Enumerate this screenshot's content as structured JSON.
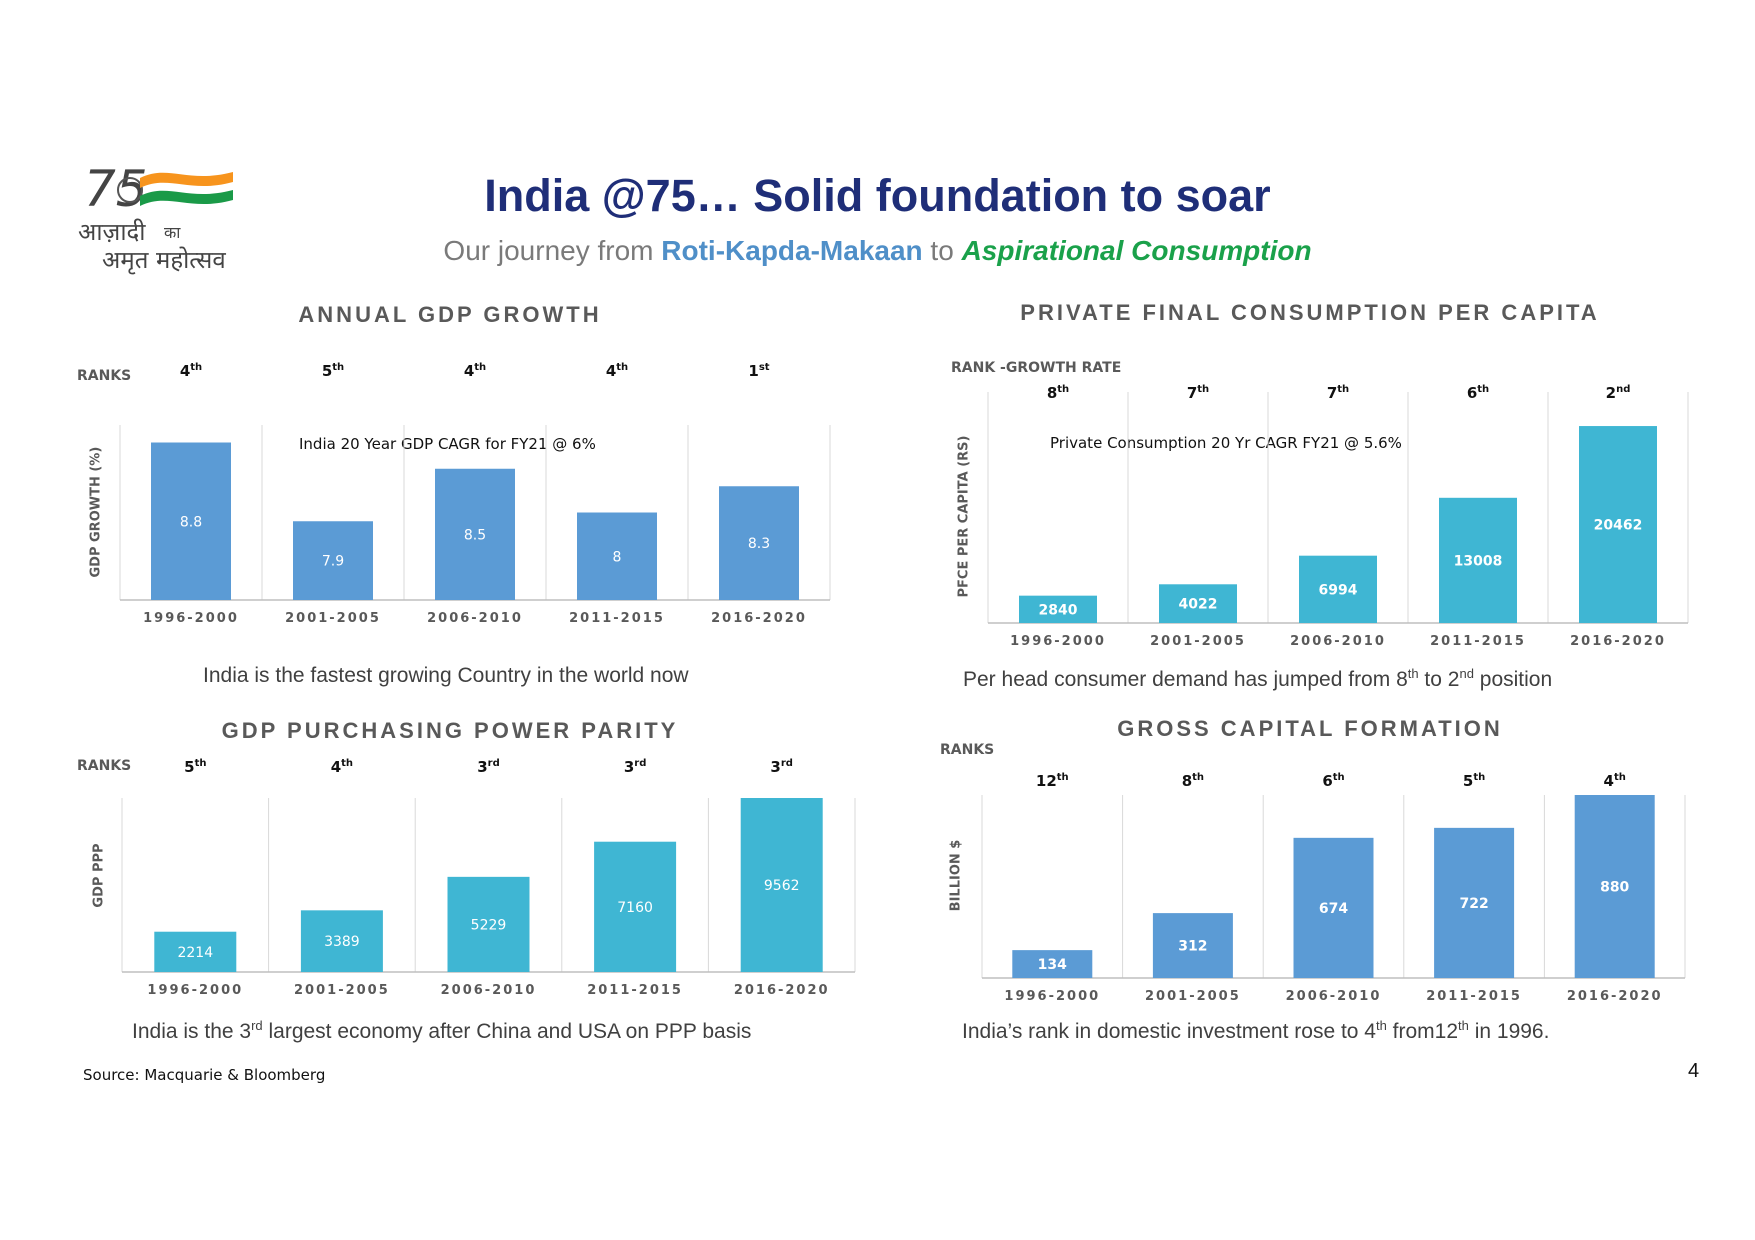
{
  "header": {
    "title": "India @75… Solid foundation to soar",
    "subtitle_prefix": "Our journey from ",
    "subtitle_highlight1": "Roti-Kapda-Makaan",
    "subtitle_mid": " to ",
    "subtitle_highlight2": "Aspirational Consumption",
    "logo_line1": "आज़ादी",
    "logo_small": "का",
    "logo_line2": "अमृत महोत्सव",
    "logo_number": "75"
  },
  "colors": {
    "title_navy": "#1f2e78",
    "blue_bar": "#5b9bd5",
    "teal_bar": "#3fb6d3",
    "green_accent": "#1aa14a",
    "saffron": "#f7941d"
  },
  "chart_data": [
    {
      "id": "gdp-growth",
      "type": "bar",
      "title": "ANNUAL GDP GROWTH",
      "rank_header": "RANKS",
      "ylabel": "GDP GROWTH (%)",
      "annotation": "India 20 Year GDP CAGR for FY21 @ 6%",
      "categories": [
        "1996-2000",
        "2001-2005",
        "2006-2010",
        "2011-2015",
        "2016-2020"
      ],
      "values": [
        8.8,
        7.9,
        8.5,
        8,
        8.3
      ],
      "value_labels": [
        "8.8",
        "7.9",
        "8.5",
        "8",
        "8.3"
      ],
      "ranks": [
        [
          "4",
          "th"
        ],
        [
          "5",
          "th"
        ],
        [
          "4",
          "th"
        ],
        [
          "4",
          "th"
        ],
        [
          "1",
          "st"
        ]
      ],
      "ylim": [
        7.0,
        9.0
      ],
      "color": "#5b9bd5",
      "label_color": "#ffffff",
      "label_bold": false,
      "caption": "India is the fastest growing Country in the world now"
    },
    {
      "id": "pfce",
      "type": "bar",
      "title": "PRIVATE FINAL CONSUMPTION PER CAPITA",
      "rank_header": "RANK -GROWTH RATE",
      "ylabel": "PFCE PER CAPITA (RS)",
      "annotation": "Private Consumption 20 Yr CAGR FY21 @ 5.6%",
      "categories": [
        "1996-2000",
        "2001-2005",
        "2006-2010",
        "2011-2015",
        "2016-2020"
      ],
      "values": [
        2840,
        4022,
        6994,
        13008,
        20462
      ],
      "value_labels": [
        "2840",
        "4022",
        "6994",
        "13008",
        "20462"
      ],
      "ranks": [
        [
          "8",
          "th"
        ],
        [
          "7",
          "th"
        ],
        [
          "7",
          "th"
        ],
        [
          "6",
          "th"
        ],
        [
          "2",
          "nd"
        ]
      ],
      "ylim": [
        0,
        24000
      ],
      "color": "#3fb6d3",
      "label_color": "#ffffff",
      "label_bold": true,
      "caption_parts": [
        "Per head consumer demand has jumped from 8",
        "th",
        " to 2",
        "nd",
        " position"
      ]
    },
    {
      "id": "gdp-ppp",
      "type": "bar",
      "title": "GDP PURCHASING POWER PARITY",
      "rank_header": "RANKS",
      "ylabel": "GDP PPP",
      "categories": [
        "1996-2000",
        "2001-2005",
        "2006-2010",
        "2011-2015",
        "2016-2020"
      ],
      "values": [
        2214,
        3389,
        5229,
        7160,
        9562
      ],
      "value_labels": [
        "2214",
        "3389",
        "5229",
        "7160",
        "9562"
      ],
      "ranks": [
        [
          "5",
          "th"
        ],
        [
          "4",
          "th"
        ],
        [
          "3",
          "rd"
        ],
        [
          "3",
          "rd"
        ],
        [
          "3",
          "rd"
        ]
      ],
      "ylim": [
        0,
        9562
      ],
      "color": "#3fb6d3",
      "label_color": "#ffffff",
      "label_bold": false,
      "caption_parts": [
        "India is the 3",
        "rd",
        " largest economy after China and USA on PPP basis"
      ]
    },
    {
      "id": "gcf",
      "type": "bar",
      "title": "GROSS CAPITAL FORMATION",
      "rank_header": "RANKS",
      "ylabel": "BILLION $",
      "categories": [
        "1996-2000",
        "2001-2005",
        "2006-2010",
        "2011-2015",
        "2016-2020"
      ],
      "values": [
        134,
        312,
        674,
        722,
        880
      ],
      "value_labels": [
        "134",
        "312",
        "674",
        "722",
        "880"
      ],
      "ranks": [
        [
          "12",
          "th"
        ],
        [
          "8",
          "th"
        ],
        [
          "6",
          "th"
        ],
        [
          "5",
          "th"
        ],
        [
          "4",
          "th"
        ]
      ],
      "ylim": [
        0,
        880
      ],
      "color": "#5b9bd5",
      "label_color": "#ffffff",
      "label_bold": true,
      "caption_parts": [
        "India’s rank in domestic investment rose to 4",
        "th",
        " from12",
        "th",
        " in 1996."
      ]
    }
  ],
  "footer": {
    "source": "Source: Macquarie & Bloomberg",
    "page_number": "4"
  }
}
